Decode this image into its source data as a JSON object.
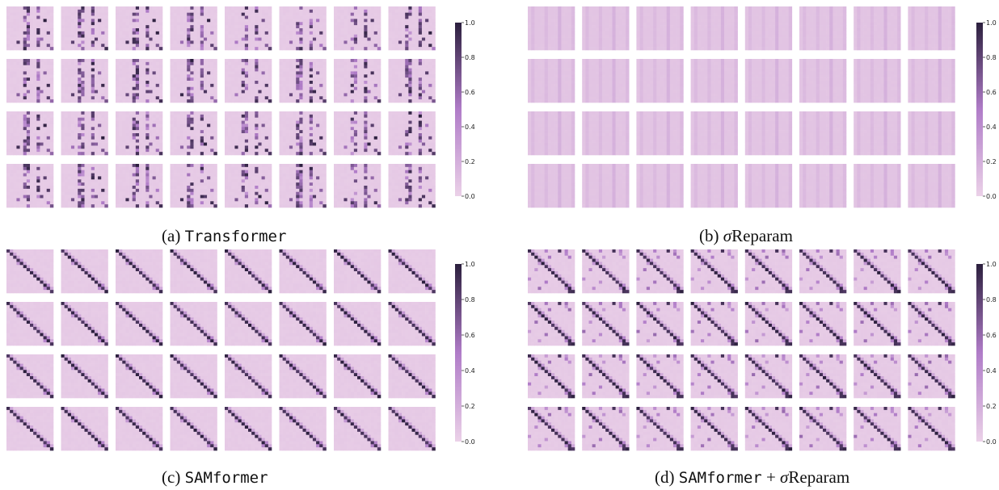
{
  "figure": {
    "panels": [
      {
        "id": "a",
        "label": "(a)",
        "name_mono": "Transformer",
        "name_text": "",
        "sym": "",
        "tail_text": ""
      },
      {
        "id": "b",
        "label": "(b)",
        "name_mono": "",
        "name_text": "",
        "sym": "σ",
        "tail_text": "Reparam"
      },
      {
        "id": "c",
        "label": "(c)",
        "name_mono": "SAMformer",
        "name_text": "",
        "sym": "",
        "tail_text": ""
      },
      {
        "id": "d",
        "label": "(d)",
        "name_mono": "SAMformer",
        "name_text": " + ",
        "sym": "σ",
        "tail_text": "Reparam"
      }
    ],
    "colors": {
      "low": "#ebd1e8",
      "mid": "#b07cc8",
      "high": "#2b1f3d"
    }
  },
  "chart_data": [
    {
      "type": "heatmap",
      "panel": "a",
      "grid": [
        4,
        8
      ],
      "pattern": "transformer-sparse-columns",
      "colorbar": {
        "ticks": [
          "1.0",
          "0.8",
          "0.6",
          "0.4",
          "0.2",
          "0.0"
        ],
        "range": [
          0,
          1
        ]
      },
      "xlabel": "",
      "ylabel": ""
    },
    {
      "type": "heatmap",
      "panel": "b",
      "grid": [
        4,
        8
      ],
      "pattern": "uniform-vertical-stripes",
      "colorbar": {
        "ticks": [
          "1.0",
          "0.8",
          "0.6",
          "0.4",
          "0.2",
          "0.0"
        ],
        "range": [
          0,
          1
        ]
      },
      "xlabel": "",
      "ylabel": ""
    },
    {
      "type": "heatmap",
      "panel": "c",
      "grid": [
        4,
        8
      ],
      "pattern": "diagonal",
      "colorbar": {
        "ticks": [
          "1.0",
          "0.8",
          "0.6",
          "0.4",
          "0.2",
          "0.0"
        ],
        "range": [
          0,
          1
        ]
      },
      "xlabel": "",
      "ylabel": ""
    },
    {
      "type": "heatmap",
      "panel": "d",
      "grid": [
        4,
        8
      ],
      "pattern": "diagonal-with-blocks",
      "colorbar": {
        "ticks": [
          "1.0",
          "0.8",
          "0.6",
          "0.4",
          "0.2",
          "0.0"
        ],
        "range": [
          0,
          1
        ]
      },
      "xlabel": "",
      "ylabel": ""
    }
  ]
}
